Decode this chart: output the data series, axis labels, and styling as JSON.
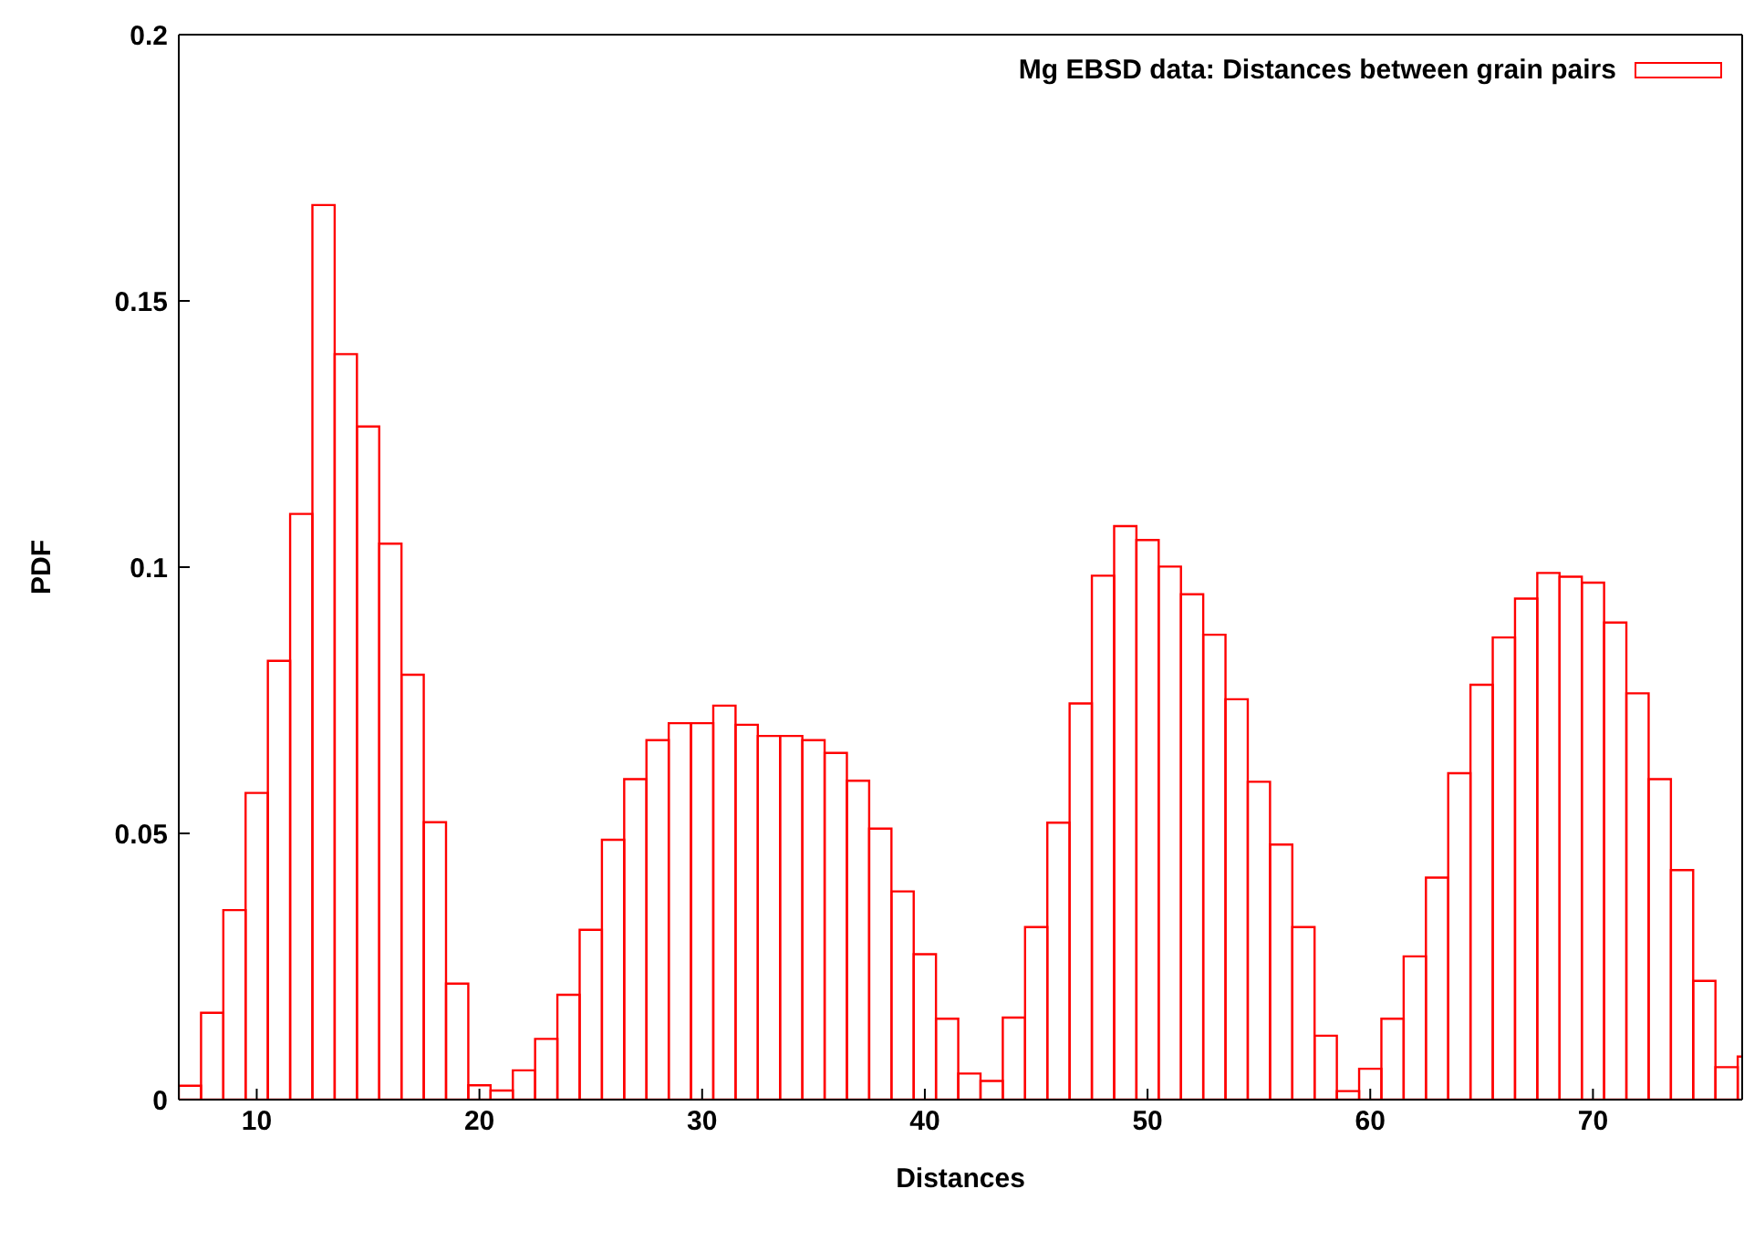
{
  "chart_data": {
    "type": "histogram",
    "xlabel": "Distances",
    "ylabel": "PDF",
    "bins": [
      6.5,
      7.5,
      8.5,
      9.5,
      10.5,
      11.5,
      12.5,
      13.5,
      14.5,
      15.5,
      16.5,
      17.5,
      18.5,
      19.5,
      20.5,
      21.5,
      22.5,
      23.5,
      24.5,
      25.5,
      26.5,
      27.5,
      28.5,
      29.5,
      30.5,
      31.5,
      32.5,
      33.5,
      34.5,
      35.5,
      36.5,
      37.5,
      38.5,
      39.5,
      40.5,
      41.5,
      42.5,
      43.5,
      44.5,
      45.5,
      46.5,
      47.5,
      48.5,
      49.5,
      50.5,
      51.5,
      52.5,
      53.5,
      54.5,
      55.5,
      56.5,
      57.5,
      58.5,
      59.5,
      60.5,
      61.5,
      62.5,
      63.5,
      64.5,
      65.5,
      66.5,
      67.5,
      68.5,
      69.5,
      70.5,
      71.5,
      72.5,
      73.5,
      74.5,
      75.5,
      76.5,
      77.5
    ],
    "series": [
      {
        "name": "Mg EBSD data: Distances between grain pairs",
        "color": "#ff0000",
        "values": [
          0.0026,
          0.0163,
          0.0356,
          0.0576,
          0.0824,
          0.11,
          0.168,
          0.14,
          0.1264,
          0.1044,
          0.0798,
          0.0521,
          0.0218,
          0.0027,
          0.0017,
          0.0055,
          0.0114,
          0.0197,
          0.0319,
          0.0488,
          0.0602,
          0.0675,
          0.0707,
          0.0707,
          0.074,
          0.0704,
          0.0683,
          0.0683,
          0.0675,
          0.0651,
          0.0599,
          0.0509,
          0.0391,
          0.0273,
          0.0152,
          0.0049,
          0.0035,
          0.0154,
          0.0324,
          0.052,
          0.0744,
          0.0984,
          0.1077,
          0.1051,
          0.1001,
          0.0949,
          0.0873,
          0.0752,
          0.0597,
          0.0479,
          0.0324,
          0.012,
          0.0016,
          0.0058,
          0.0152,
          0.0269,
          0.0417,
          0.0613,
          0.0779,
          0.0868,
          0.0941,
          0.0989,
          0.0982,
          0.0971,
          0.0896,
          0.0763,
          0.0602,
          0.0431,
          0.0223,
          0.0061,
          0.0081
        ]
      }
    ],
    "xlim": [
      6.5,
      76.7
    ],
    "xticks": [
      10,
      20,
      30,
      40,
      50,
      60,
      70
    ],
    "ylim": [
      0,
      0.2
    ],
    "yticks": [
      0,
      0.05,
      0.1,
      0.15,
      0.2
    ],
    "grid": false,
    "legend": "top right"
  }
}
